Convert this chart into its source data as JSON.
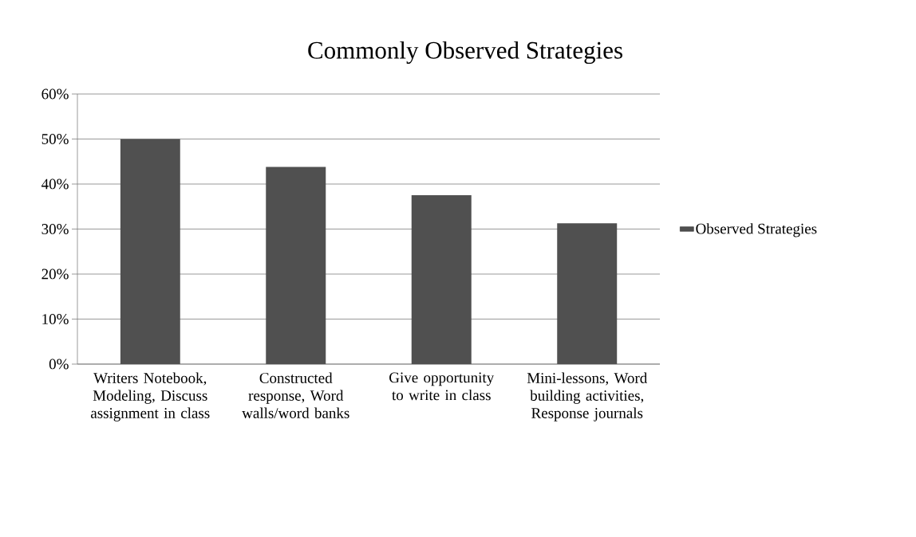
{
  "chart_data": {
    "type": "bar",
    "title": "Commonly Observed Strategies",
    "categories": [
      "Writers Notebook, Modeling, Discuss assignment in class",
      "Constructed response, Word walls/word banks",
      "Give opportunity to write in class",
      "Mini-lessons, Word building activities, Response journals"
    ],
    "series": [
      {
        "name": "Observed Strategies",
        "color": "#505050",
        "values": [
          50,
          43.8,
          37.5,
          31.3
        ]
      }
    ],
    "ylim": [
      0,
      60
    ],
    "yticks": [
      {
        "value": 0,
        "label": "0%"
      },
      {
        "value": 10,
        "label": "10%"
      },
      {
        "value": 20,
        "label": "20%"
      },
      {
        "value": 30,
        "label": "30%"
      },
      {
        "value": 40,
        "label": "40%"
      },
      {
        "value": 50,
        "label": "50%"
      },
      {
        "value": 60,
        "label": "60%"
      }
    ],
    "grid": "y",
    "legend": "right"
  }
}
